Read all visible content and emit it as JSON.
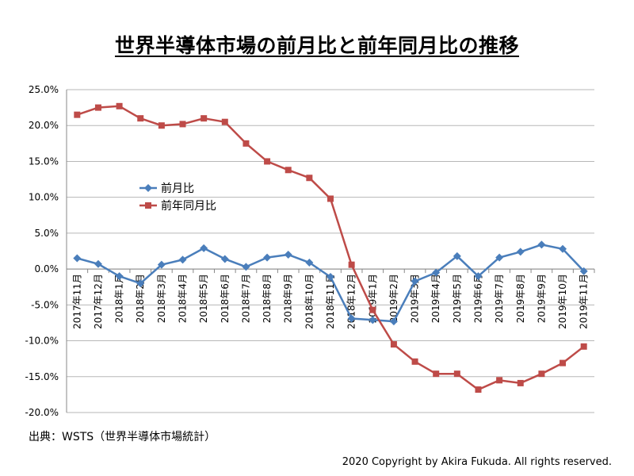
{
  "title": "世界半導体市場の前月比と前年同月比の推移",
  "source": "出典：WSTS（世界半導体市場統計）",
  "copyright": "2020 Copyright by Akira Fukuda. All rights reserved.",
  "colors": {
    "mom": "#4a7ebb",
    "yoy": "#be4b48",
    "grid": "#b7b7b7",
    "axis": "#888888"
  },
  "chart_data": {
    "type": "line",
    "title": "世界半導体市場の前月比と前年同月比の推移",
    "xlabel": "",
    "ylabel": "",
    "ylim": [
      -20,
      25
    ],
    "yticks": [
      "25.0%",
      "20.0%",
      "15.0%",
      "10.0%",
      "5.0%",
      "0.0%",
      "-5.0%",
      "-10.0%",
      "-15.0%",
      "-20.0%"
    ],
    "grid": true,
    "legend_position": "upper-left",
    "categories": [
      "2017年11月",
      "2017年12月",
      "2018年1月",
      "2018年2月",
      "2018年3月",
      "2018年4月",
      "2018年5月",
      "2018年6月",
      "2018年7月",
      "2018年8月",
      "2018年9月",
      "2018年10月",
      "2018年11月",
      "2018年12月",
      "2019年1月",
      "2019年2月",
      "2019年3月",
      "2019年4月",
      "2019年5月",
      "2019年6月",
      "2019年7月",
      "2019年8月",
      "2019年9月",
      "2019年10月",
      "2019年11月"
    ],
    "series": [
      {
        "name": "前月比",
        "color": "#4a7ebb",
        "marker": "diamond",
        "values": [
          1.5,
          0.7,
          -1.0,
          -2.0,
          0.6,
          1.3,
          2.9,
          1.4,
          0.3,
          1.6,
          2.0,
          0.9,
          -1.1,
          -6.9,
          -7.1,
          -7.3,
          -1.7,
          -0.5,
          1.8,
          -1.0,
          1.6,
          2.4,
          3.4,
          2.8,
          -0.3
        ]
      },
      {
        "name": "前年同月比",
        "color": "#be4b48",
        "marker": "square",
        "values": [
          21.5,
          22.5,
          22.7,
          21.0,
          20.0,
          20.2,
          21.0,
          20.5,
          17.5,
          15.0,
          13.8,
          12.7,
          9.8,
          0.6,
          -5.7,
          -10.5,
          -12.9,
          -14.6,
          -14.6,
          -16.8,
          -15.5,
          -15.9,
          -14.6,
          -13.1,
          -10.8
        ]
      }
    ]
  }
}
